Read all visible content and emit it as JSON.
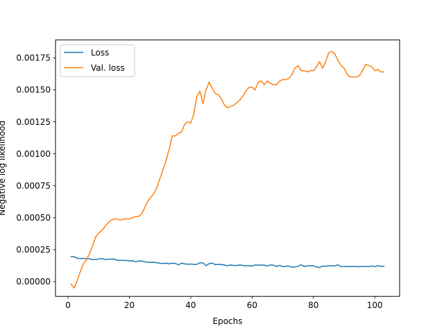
{
  "chart_data": {
    "type": "line",
    "title": "",
    "xlabel": "Epochs",
    "ylabel": "Negative log likelihood",
    "xlim": [
      -4.1,
      108.1
    ],
    "ylim": [
      -0.000115,
      0.00189
    ],
    "xticks": [
      0,
      20,
      40,
      60,
      80,
      100
    ],
    "xtick_labels": [
      "0",
      "20",
      "40",
      "60",
      "80",
      "100"
    ],
    "yticks": [
      0,
      0.00025,
      0.0005,
      0.00075,
      0.001,
      0.00125,
      0.0015,
      0.00175
    ],
    "ytick_labels": [
      "0.00000",
      "0.00025",
      "0.00050",
      "0.00075",
      "0.00100",
      "0.00125",
      "0.00150",
      "0.00175"
    ],
    "grid": false,
    "legend_position": "top-left",
    "x": [
      1,
      2,
      3,
      4,
      5,
      6,
      7,
      8,
      9,
      10,
      11,
      12,
      13,
      14,
      15,
      16,
      17,
      18,
      19,
      20,
      21,
      22,
      23,
      24,
      25,
      26,
      27,
      28,
      29,
      30,
      31,
      32,
      33,
      34,
      35,
      36,
      37,
      38,
      39,
      40,
      41,
      42,
      43,
      44,
      45,
      46,
      47,
      48,
      49,
      50,
      51,
      52,
      53,
      54,
      55,
      56,
      57,
      58,
      59,
      60,
      61,
      62,
      63,
      64,
      65,
      66,
      67,
      68,
      69,
      70,
      71,
      72,
      73,
      74,
      75,
      76,
      77,
      78,
      79,
      80,
      81,
      82,
      83,
      84,
      85,
      86,
      87,
      88,
      89,
      90,
      91,
      92,
      93,
      94,
      95,
      96,
      97,
      98,
      99,
      100,
      101,
      102,
      103
    ],
    "series": [
      {
        "name": "Loss",
        "color": "#1f77b4",
        "values": [
          0.000195,
          0.000195,
          0.000183,
          0.000181,
          0.000182,
          0.00018,
          0.000179,
          0.000172,
          0.000174,
          0.000177,
          0.000181,
          0.000174,
          0.000175,
          0.000176,
          0.000177,
          0.000168,
          0.000167,
          0.000166,
          0.000166,
          0.000162,
          0.000165,
          0.000155,
          0.000161,
          0.000162,
          0.000155,
          0.000152,
          0.000151,
          0.000152,
          0.000148,
          0.000143,
          0.000142,
          0.000145,
          0.000139,
          0.000145,
          0.000142,
          0.000132,
          0.000145,
          0.000139,
          0.000136,
          0.000138,
          0.000135,
          0.000135,
          0.000148,
          0.000146,
          0.000125,
          0.000141,
          0.000145,
          0.000133,
          0.000135,
          0.000134,
          0.00013,
          0.000125,
          0.000131,
          0.000127,
          0.000127,
          0.000131,
          0.000127,
          0.000125,
          0.000124,
          0.000122,
          0.00013,
          0.00013,
          0.000129,
          0.00013,
          0.000122,
          0.000131,
          0.000129,
          0.000118,
          0.000128,
          0.000117,
          0.00012,
          0.000122,
          0.000112,
          0.000115,
          0.000121,
          0.000132,
          0.000118,
          0.000124,
          0.000125,
          0.000124,
          0.000114,
          0.000112,
          0.000122,
          0.000121,
          0.000125,
          0.000124,
          0.000124,
          0.000132,
          0.000117,
          0.000119,
          0.000118,
          0.000118,
          0.000119,
          0.000118,
          0.000117,
          0.000119,
          0.000119,
          0.000117,
          0.000123,
          0.000117,
          0.000126,
          0.000119,
          0.000121
        ]
      },
      {
        "name": "Val. loss",
        "color": "#ff7f0e",
        "values": [
          -2e-05,
          -5e-05,
          1e-05,
          8e-05,
          0.00014,
          0.00017,
          0.00022,
          0.00028,
          0.00035,
          0.00038,
          0.0004,
          0.00043,
          0.00046,
          0.00048,
          0.00049,
          0.00049,
          0.00048,
          0.00049,
          0.00049,
          0.00049,
          0.0005,
          0.00051,
          0.00051,
          0.00053,
          0.00058,
          0.00063,
          0.00066,
          0.00069,
          0.00074,
          0.00081,
          0.00088,
          0.00095,
          0.00104,
          0.00114,
          0.00114,
          0.00116,
          0.00117,
          0.00123,
          0.00125,
          0.00124,
          0.00131,
          0.00145,
          0.00149,
          0.00139,
          0.0015,
          0.00156,
          0.00151,
          0.00147,
          0.00146,
          0.00143,
          0.00138,
          0.00136,
          0.00137,
          0.00138,
          0.0014,
          0.00142,
          0.00145,
          0.00149,
          0.00152,
          0.00152,
          0.0015,
          0.00156,
          0.00157,
          0.00154,
          0.00157,
          0.00155,
          0.00154,
          0.00154,
          0.00157,
          0.00158,
          0.00158,
          0.00159,
          0.00162,
          0.00167,
          0.00169,
          0.00165,
          0.00165,
          0.00164,
          0.00165,
          0.00165,
          0.00168,
          0.00172,
          0.00167,
          0.00172,
          0.00179,
          0.0018,
          0.00178,
          0.00173,
          0.00169,
          0.00167,
          0.00162,
          0.0016,
          0.0016,
          0.0016,
          0.00161,
          0.00165,
          0.0017,
          0.00169,
          0.00168,
          0.00165,
          0.00166,
          0.00164,
          0.00164
        ]
      }
    ]
  }
}
